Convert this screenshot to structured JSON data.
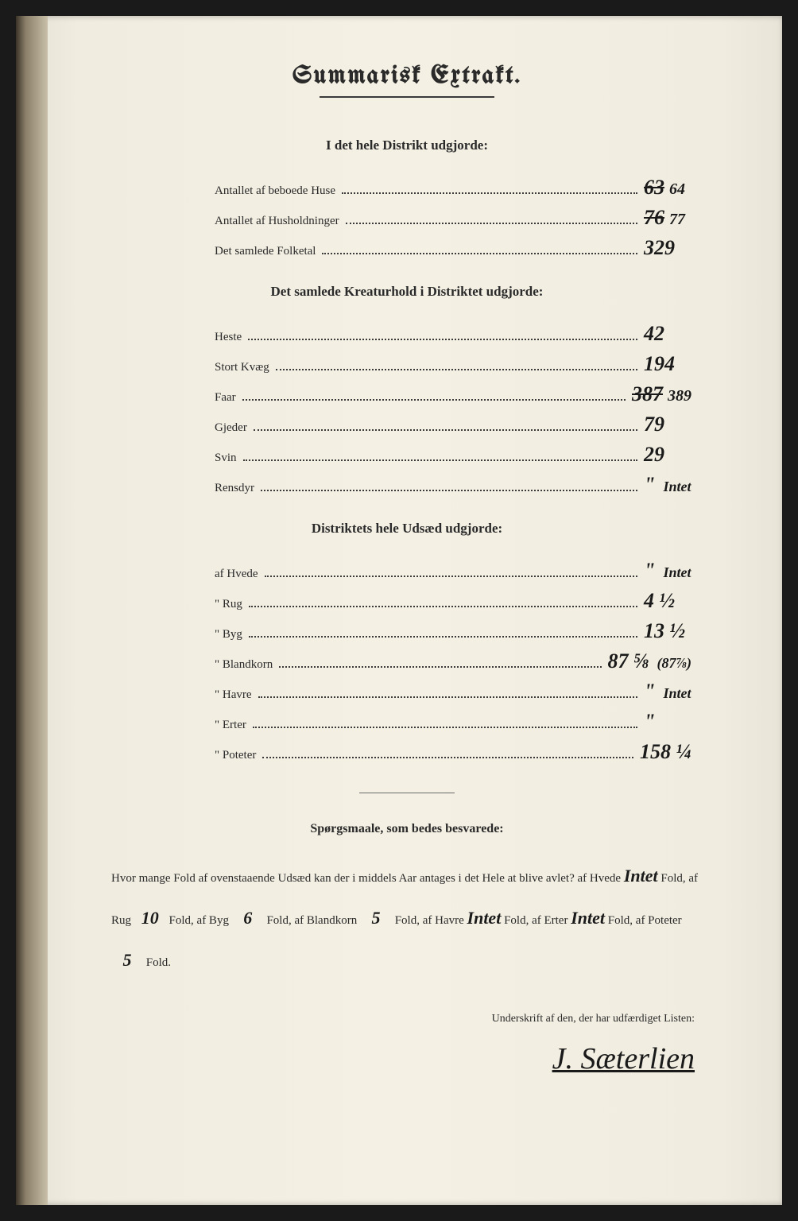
{
  "title": "Summarisk Extrakt.",
  "section1": {
    "heading": "I det hele Distrikt udgjorde:",
    "rows": [
      {
        "label": "Antallet af beboede Huse",
        "value": "63",
        "struck": true,
        "correction": "64"
      },
      {
        "label": "Antallet af Husholdninger",
        "value": "76",
        "struck": true,
        "correction": "77"
      },
      {
        "label": "Det samlede Folketal",
        "value": "329"
      }
    ]
  },
  "section2": {
    "heading": "Det samlede Kreaturhold i Distriktet udgjorde:",
    "rows": [
      {
        "label": "Heste",
        "value": "42"
      },
      {
        "label": "Stort Kvæg",
        "value": "194"
      },
      {
        "label": "Faar",
        "value": "387",
        "struck": true,
        "correction": "389"
      },
      {
        "label": "Gjeder",
        "value": "79"
      },
      {
        "label": "Svin",
        "value": "29"
      },
      {
        "label": "Rensdyr",
        "value": "\"",
        "annotation": "Intet"
      }
    ]
  },
  "section3": {
    "heading": "Distriktets hele Udsæd udgjorde:",
    "rows": [
      {
        "label": "af Hvede",
        "value": "\"",
        "annotation": "Intet"
      },
      {
        "label": "\" Rug",
        "value": "4 ½"
      },
      {
        "label": "\" Byg",
        "value": "13 ½"
      },
      {
        "label": "\" Blandkorn",
        "value": "87 ⅝",
        "annotation": "(87⅞)"
      },
      {
        "label": "\" Havre",
        "value": "\"",
        "annotation": "Intet"
      },
      {
        "label": "\" Erter",
        "value": "\""
      },
      {
        "label": "\" Poteter",
        "value": "158 ¼"
      }
    ]
  },
  "questions": {
    "heading": "Spørgsmaale, som bedes besvarede:",
    "intro": "Hvor mange Fold af ovenstaaende Udsæd kan der i middels Aar antages i det Hele at blive avlet?",
    "items": [
      {
        "label": "af Hvede",
        "value": "Intet",
        "suffix": "Fold,"
      },
      {
        "label": "af Rug",
        "value": "10",
        "suffix": "Fold,"
      },
      {
        "label": "af Byg",
        "value": "6",
        "suffix": "Fold,"
      },
      {
        "label": "af Blandkorn",
        "value": "5",
        "suffix": "Fold,"
      },
      {
        "label": "af Havre",
        "value": "Intet",
        "suffix": "Fold,"
      },
      {
        "label": "af Erter",
        "value": "Intet",
        "suffix": "Fold,"
      },
      {
        "label": "af Poteter",
        "value": "5",
        "suffix": "Fold."
      }
    ]
  },
  "signature": {
    "label": "Underskrift af den, der har udfærdiget Listen:",
    "name": "J. Sæterlien"
  }
}
